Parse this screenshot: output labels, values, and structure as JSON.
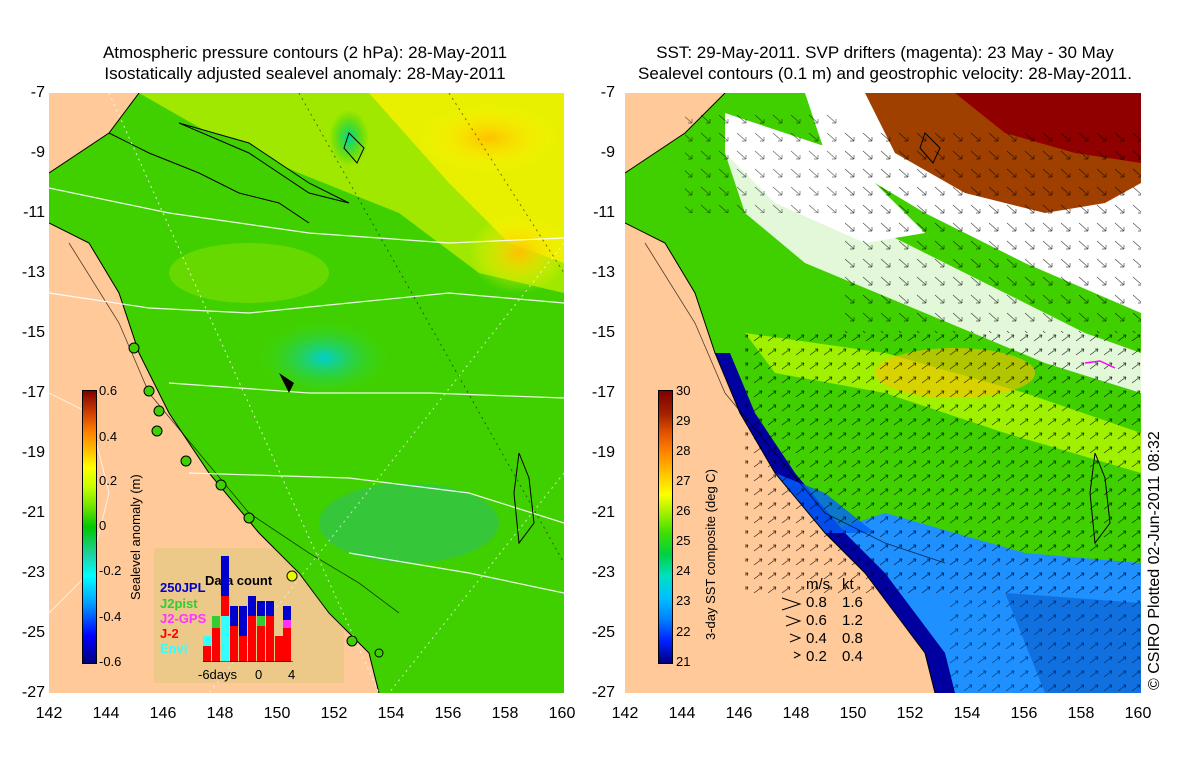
{
  "left": {
    "title_line1": "Atmospheric pressure contours (2 hPa): 28-May-2011",
    "title_line2": "Isostatically adjusted sealevel anomaly: 28-May-2011",
    "colorbar_label": "Sealevel anomaly (m)",
    "colorbar_ticks": [
      "0.6",
      "0.4",
      "0.2",
      "0",
      "-0.2",
      "-0.4",
      "-0.6"
    ],
    "colorbar_range": [
      -0.6,
      0.6
    ],
    "colors": [
      "#00007f",
      "#0000ff",
      "#00a0ff",
      "#00ffff",
      "#20d0a0",
      "#00c800",
      "#78e600",
      "#c8ff00",
      "#ffff00",
      "#ffc000",
      "#ff8000",
      "#d04000",
      "#800000"
    ],
    "data_count": {
      "title": "Data count",
      "legend": [
        {
          "label": "250JPL",
          "color": "#0000cc"
        },
        {
          "label": "J2pist",
          "color": "#33cc33"
        },
        {
          "label": "J2-GPS",
          "color": "#ff33ff"
        },
        {
          "label": "J-2",
          "color": "#ff0000"
        },
        {
          "label": "Envi",
          "color": "#33ffff"
        }
      ],
      "x_ticks": [
        "-6days",
        "0",
        "4"
      ]
    }
  },
  "right": {
    "title_line1": "SST: 29-May-2011. SVP drifters (magenta): 23 May - 30 May",
    "title_line2": "Sealevel contours (0.1 m) and geostrophic velocity: 28-May-2011.",
    "colorbar_label": "3-day SST composite (deg C)",
    "colorbar_ticks": [
      "30",
      "29",
      "28",
      "27",
      "26",
      "25",
      "24",
      "23",
      "22",
      "21"
    ],
    "colorbar_range": [
      21,
      30
    ],
    "colors": [
      "#00007f",
      "#0020ff",
      "#0080ff",
      "#00c0ff",
      "#00e0c0",
      "#00d040",
      "#40e000",
      "#a0f000",
      "#ffff00",
      "#ffc000",
      "#ff8000",
      "#e05000",
      "#a02000",
      "#800000"
    ],
    "velocity_legend": {
      "header_ms": "m/s",
      "header_kt": "kt",
      "rows": [
        {
          "ms": "0.8",
          "kt": "1.6"
        },
        {
          "ms": "0.6",
          "kt": "1.2"
        },
        {
          "ms": "0.4",
          "kt": "0.8"
        },
        {
          "ms": "0.2",
          "kt": "0.4"
        }
      ]
    },
    "credit": "© CSIRO Plotted 02-Jun-2011 08:32"
  },
  "axes": {
    "y_ticks": [
      "-7",
      "-9",
      "-11",
      "-13",
      "-15",
      "-17",
      "-19",
      "-21",
      "-23",
      "-25",
      "-27"
    ],
    "x_ticks": [
      "142",
      "144",
      "146",
      "148",
      "150",
      "152",
      "154",
      "156",
      "158",
      "160"
    ],
    "lat_range": [
      -27,
      -7
    ],
    "lon_range": [
      142,
      160
    ]
  },
  "land_color": "#ffc999"
}
